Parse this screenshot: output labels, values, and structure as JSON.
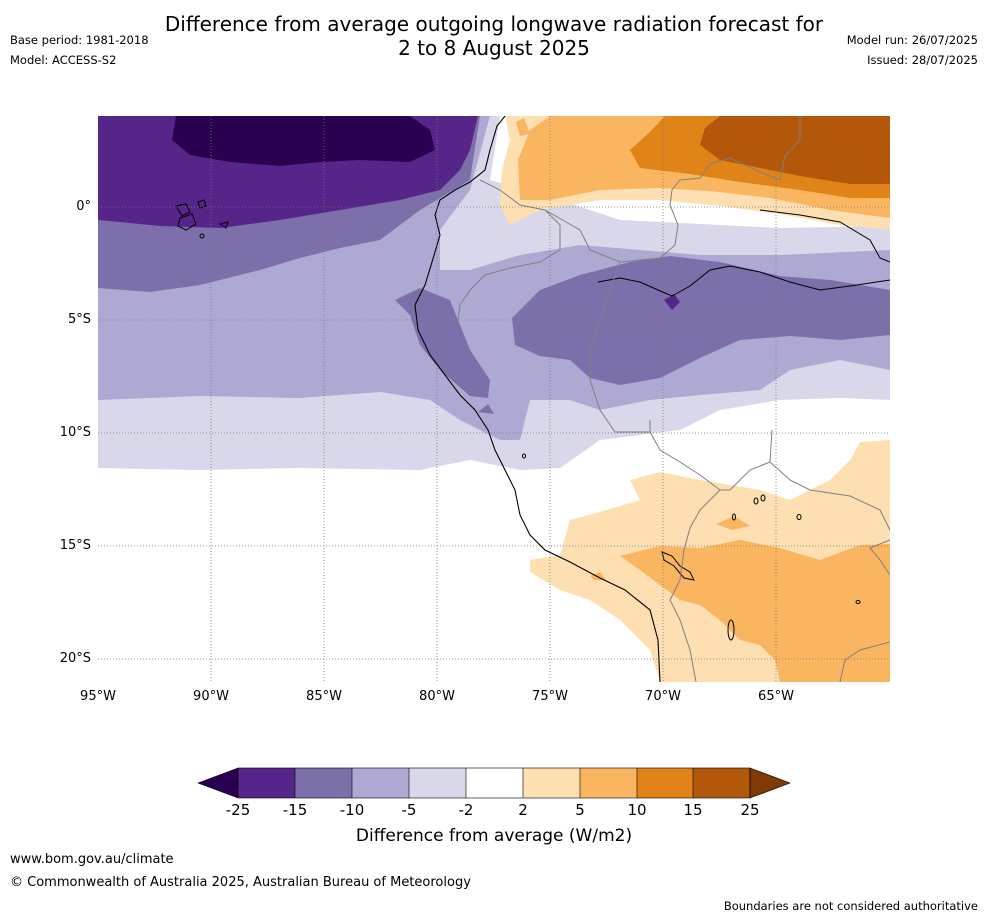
{
  "title": {
    "line1": "Difference from average outgoing longwave radiation forecast for",
    "line2": "2 to 8 August 2025"
  },
  "meta": {
    "base_period": "Base period: 1981-2018",
    "model": "Model: ACCESS-S2",
    "model_run": "Model run: 26/07/2025",
    "issued": "Issued: 28/07/2025"
  },
  "map": {
    "lat_labels": [
      "0°",
      "5°S",
      "10°S",
      "15°S",
      "20°S"
    ],
    "lon_labels": [
      "95°W",
      "90°W",
      "85°W",
      "80°W",
      "75°W",
      "70°W",
      "65°W"
    ]
  },
  "colorbar": {
    "title": "Difference from average (W/m2)",
    "ticks": [
      "-25",
      "-15",
      "-10",
      "-5",
      "-2",
      "2",
      "5",
      "10",
      "15",
      "25"
    ],
    "colors": [
      "#2a0050",
      "#55258a",
      "#7d70aa",
      "#aea9d2",
      "#d8d8ea",
      "#ffffff",
      "#fddfb2",
      "#fab560",
      "#e08418",
      "#b3580a",
      "#7f3a06"
    ]
  },
  "footer": {
    "website": "www.bom.gov.au/climate",
    "copyright": "© Commonwealth of Australia 2025, Australian Bureau of Meteorology",
    "disclaimer": "Boundaries are not considered authoritative"
  }
}
